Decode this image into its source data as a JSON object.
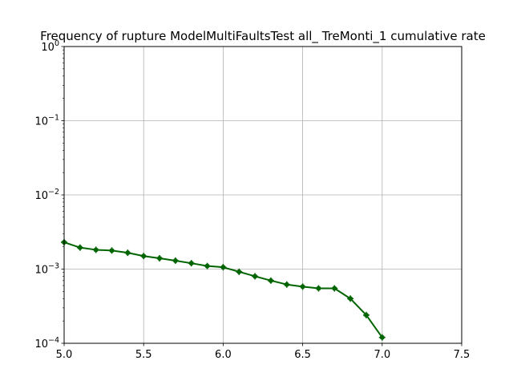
{
  "chart_data": {
    "type": "line",
    "title": "Frequency of rupture ModelMultiFaultsTest all_ TreMonti_1 cumulative rate",
    "xlabel": "",
    "ylabel": "",
    "xlim": [
      5.0,
      7.5
    ],
    "ylim": [
      0.0001,
      1
    ],
    "yscale": "log",
    "grid": true,
    "x_ticks": [
      {
        "value": 5.0,
        "label": "5.0"
      },
      {
        "value": 5.5,
        "label": "5.5"
      },
      {
        "value": 6.0,
        "label": "6.0"
      },
      {
        "value": 6.5,
        "label": "6.5"
      },
      {
        "value": 7.0,
        "label": "7.0"
      },
      {
        "value": 7.5,
        "label": "7.5"
      }
    ],
    "y_ticks": [
      {
        "value": 0.0001,
        "base": "10",
        "exp": "−4"
      },
      {
        "value": 0.001,
        "base": "10",
        "exp": "−3"
      },
      {
        "value": 0.01,
        "base": "10",
        "exp": "−2"
      },
      {
        "value": 0.1,
        "base": "10",
        "exp": "−1"
      },
      {
        "value": 1,
        "base": "10",
        "exp": "0"
      }
    ],
    "series": [
      {
        "color": "#006400",
        "x": [
          5.0,
          5.1,
          5.2,
          5.3,
          5.4,
          5.5,
          5.6,
          5.7,
          5.8,
          5.9,
          6.0,
          6.1,
          6.2,
          6.3,
          6.4,
          6.5,
          6.6,
          6.7,
          6.8,
          6.9,
          7.0
        ],
        "y": [
          0.0023,
          0.00195,
          0.00182,
          0.00178,
          0.00166,
          0.0015,
          0.0014,
          0.0013,
          0.0012,
          0.0011,
          0.00106,
          0.00092,
          0.0008,
          0.0007,
          0.00062,
          0.00058,
          0.00055,
          0.00055,
          0.0004,
          0.00024,
          0.00012
        ]
      }
    ]
  }
}
